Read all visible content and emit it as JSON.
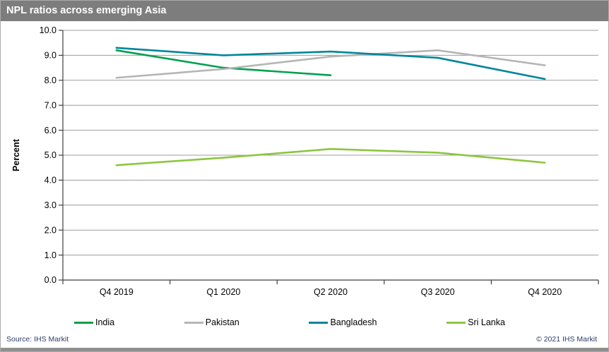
{
  "header": {
    "title": "NPL ratios across emerging Asia"
  },
  "chart_data": {
    "type": "line",
    "title": "NPL ratios across emerging Asia",
    "xlabel": "",
    "ylabel": "Percent",
    "ylim": [
      0,
      10
    ],
    "ytick_step": 1.0,
    "ytick_format_decimals": 1,
    "grid": "horizontal",
    "legend_position": "bottom",
    "categories": [
      "Q4 2019",
      "Q1 2020",
      "Q2 2020",
      "Q3 2020",
      "Q4 2020"
    ],
    "series": [
      {
        "name": "India",
        "color": "#00a04e",
        "values": [
          9.2,
          8.5,
          8.2,
          null,
          null
        ]
      },
      {
        "name": "Pakistan",
        "color": "#b5b5b5",
        "values": [
          8.1,
          8.45,
          8.95,
          9.2,
          8.6
        ]
      },
      {
        "name": "Bangladesh",
        "color": "#00869b",
        "values": [
          9.3,
          9.0,
          9.15,
          8.9,
          8.05
        ]
      },
      {
        "name": "Sri Lanka",
        "color": "#8dc63f",
        "values": [
          4.6,
          4.9,
          5.25,
          5.1,
          4.7
        ]
      }
    ]
  },
  "colors": {
    "header_bg": "#7d7d7d",
    "gridline": "#9c9c9c",
    "axis": "#3f3f3f",
    "footer_text": "#2b3d6b",
    "bottom_bar": "#8f8f8f"
  },
  "footer": {
    "source": "Source:  IHS Markit",
    "copyright": "© 2021  IHS Markit"
  }
}
